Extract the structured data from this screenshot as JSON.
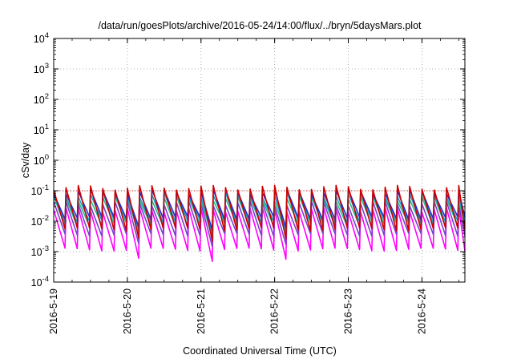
{
  "chart_data": {
    "type": "line",
    "title": "/data/run/goesPlots/archive/2016-05-24/14:00/flux/../bryn/5daysMars.plot",
    "xlabel": "Coordinated Universal Time (UTC)",
    "ylabel": "cSv/day",
    "yscale": "log",
    "ylim": [
      0.0001,
      10000
    ],
    "xlim": [
      "2016-05-19T00:00",
      "2016-05-24T14:00"
    ],
    "grid": true,
    "legend": "none",
    "y_ticks": [
      {
        "base": "10",
        "exp": "-4",
        "value": 0.0001
      },
      {
        "base": "10",
        "exp": "-3",
        "value": 0.001
      },
      {
        "base": "10",
        "exp": "-2",
        "value": 0.01
      },
      {
        "base": "10",
        "exp": "-1",
        "value": 0.1
      },
      {
        "base": "10",
        "exp": "0",
        "value": 1
      },
      {
        "base": "10",
        "exp": "1",
        "value": 10
      },
      {
        "base": "10",
        "exp": "2",
        "value": 100
      },
      {
        "base": "10",
        "exp": "3",
        "value": 1000
      },
      {
        "base": "10",
        "exp": "4",
        "value": 10000
      }
    ],
    "x_ticks": [
      {
        "label": "2016-5-19",
        "value": "2016-05-19T00:00"
      },
      {
        "label": "2016-5-20",
        "value": "2016-05-20T00:00"
      },
      {
        "label": "2016-5-21",
        "value": "2016-05-21T00:00"
      },
      {
        "label": "2016-5-22",
        "value": "2016-05-22T00:00"
      },
      {
        "label": "2016-5-23",
        "value": "2016-05-23T00:00"
      },
      {
        "label": "2016-5-24",
        "value": "2016-05-24T00:00"
      }
    ],
    "pattern": {
      "cycle_hours": 4,
      "phases": [
        {
          "day_from": 0.0,
          "day_to": 1.0,
          "cycles": 6
        },
        {
          "day_from": 1.0,
          "day_to": 2.0,
          "cycles": 6
        },
        {
          "day_from": 2.0,
          "day_to": 3.0,
          "cycles": 6
        },
        {
          "day_from": 3.0,
          "day_to": 4.0,
          "cycles": 6
        },
        {
          "day_from": 4.0,
          "day_to": 5.0,
          "cycles": 6
        },
        {
          "day_from": 5.0,
          "day_to": 5.583,
          "cycles": 3.5
        }
      ]
    },
    "series": [
      {
        "color": "#cc0000",
        "peak": 0.15,
        "trough": 0.006
      },
      {
        "color": "#1f2fd6",
        "peak": 0.11,
        "trough": 0.014
      },
      {
        "color": "#1aa0c8",
        "peak": 0.085,
        "trough": 0.011
      },
      {
        "color": "#22c08a",
        "peak": 0.065,
        "trough": 0.0085
      },
      {
        "color": "#7a3fd0",
        "peak": 0.045,
        "trough": 0.004
      },
      {
        "color": "#ff00ff",
        "peak": 0.028,
        "trough": 0.0013
      }
    ],
    "reference_line": {
      "value": 0.1,
      "style": "dotted",
      "color": "#cc0000"
    },
    "dropouts": [
      {
        "day": 1.02,
        "low": 0.0028
      },
      {
        "day": 2.03,
        "low": 0.0022
      },
      {
        "day": 3.04,
        "low": 0.0026
      }
    ]
  }
}
